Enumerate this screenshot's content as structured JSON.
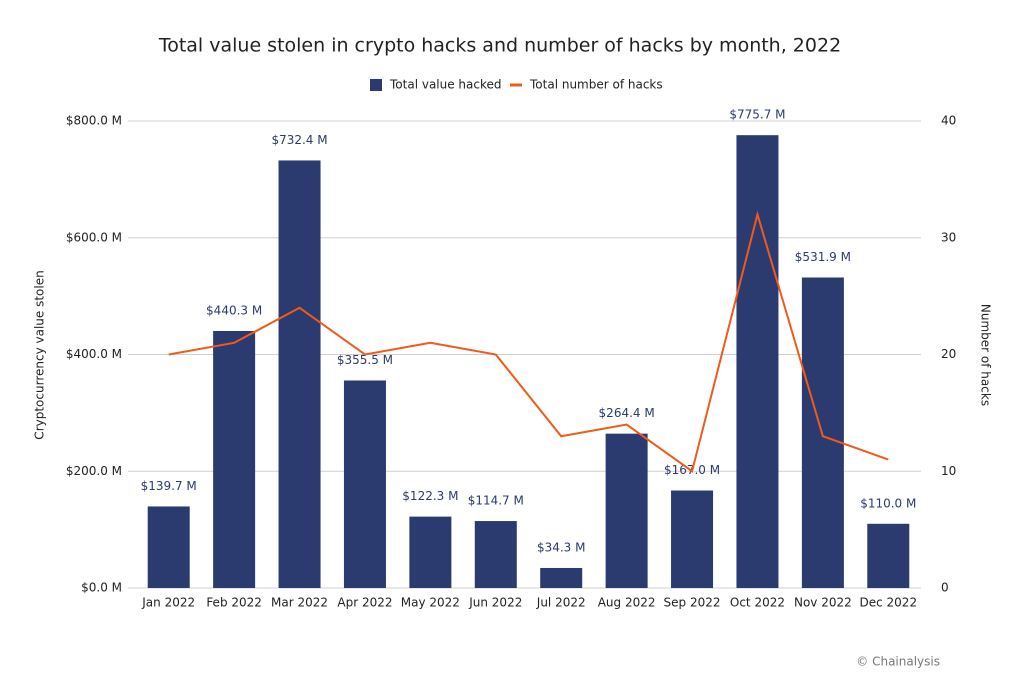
{
  "chart_data": {
    "type": "bar-line",
    "title": "Total value stolen in crypto hacks and number of hacks by month, 2022",
    "ylabel": "Cryptocurrency value stolen",
    "y2label": "Number of hacks",
    "source": "© Chainalysis",
    "categories": [
      "Jan 2022",
      "Feb 2022",
      "Mar 2022",
      "Apr 2022",
      "May 2022",
      "Jun 2022",
      "Jul 2022",
      "Aug 2022",
      "Sep 2022",
      "Oct 2022",
      "Nov 2022",
      "Dec 2022"
    ],
    "series": [
      {
        "name": "Total value hacked",
        "type": "bar",
        "color": "#2b3a6f",
        "values": [
          139.7,
          440.3,
          732.4,
          355.5,
          122.3,
          114.7,
          34.3,
          264.4,
          167.0,
          775.7,
          531.9,
          110.0
        ],
        "value_labels": [
          "$139.7 M",
          "$440.3 M",
          "$732.4 M",
          "$355.5 M",
          "$122.3 M",
          "$114.7 M",
          "$34.3 M",
          "$264.4 M",
          "$167.0 M",
          "$775.7 M",
          "$531.9 M",
          "$110.0 M"
        ]
      },
      {
        "name": "Total number of hacks",
        "type": "line",
        "axis": "y2",
        "color": "#f05a1a",
        "values": [
          20,
          21,
          24,
          20,
          21,
          20,
          13,
          14,
          10,
          32,
          13,
          11
        ]
      }
    ],
    "ylim": [
      0,
      800
    ],
    "yticks": [
      {
        "value": 0,
        "label": "$0.0 M"
      },
      {
        "value": 200,
        "label": "$200.0 M"
      },
      {
        "value": 400,
        "label": "$400.0 M"
      },
      {
        "value": 600,
        "label": "$600.0 M"
      },
      {
        "value": 800,
        "label": "$800.0 M"
      }
    ],
    "y2lim": [
      0,
      40
    ],
    "y2ticks": [
      0,
      10,
      20,
      30,
      40
    ],
    "grid": true,
    "legend": "top"
  }
}
